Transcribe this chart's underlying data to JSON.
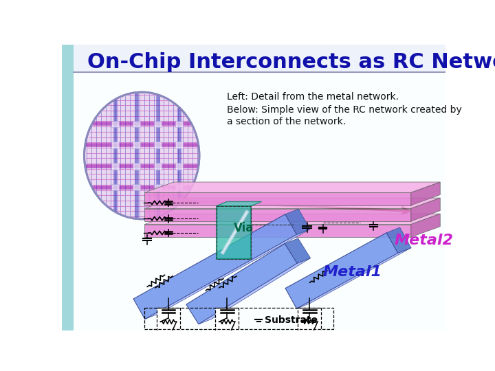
{
  "title": "On-Chip Interconnects as RC Networks",
  "title_color": "#1010AA",
  "title_fontsize": 22,
  "bg_color": "#FFFFFF",
  "left_bg_top": "#A8D8DC",
  "left_bg_bot": "#C0ECEC",
  "header_bg": "#E8EEF8",
  "text1": "Left: Detail from the metal network.",
  "text2": "Below: Simple view of the RC network created by\na section of the network.",
  "text_color": "#111111",
  "metal2_label": "Metal2",
  "metal2_color": "#CC22CC",
  "metal1_label": "Metal1",
  "metal1_color": "#2222CC",
  "via_label": "Via",
  "via_color": "#006644",
  "substrate_label": "Substrate",
  "arrow_color": "#6B0000",
  "pink_face": "#E888D8",
  "pink_top": "#F5B0E8",
  "pink_side": "#C060B0",
  "blue_face": "#7799EE",
  "blue_top": "#AABBFF",
  "blue_side": "#5577CC",
  "teal_color": "#30BBAA",
  "teal_dark": "#008866"
}
